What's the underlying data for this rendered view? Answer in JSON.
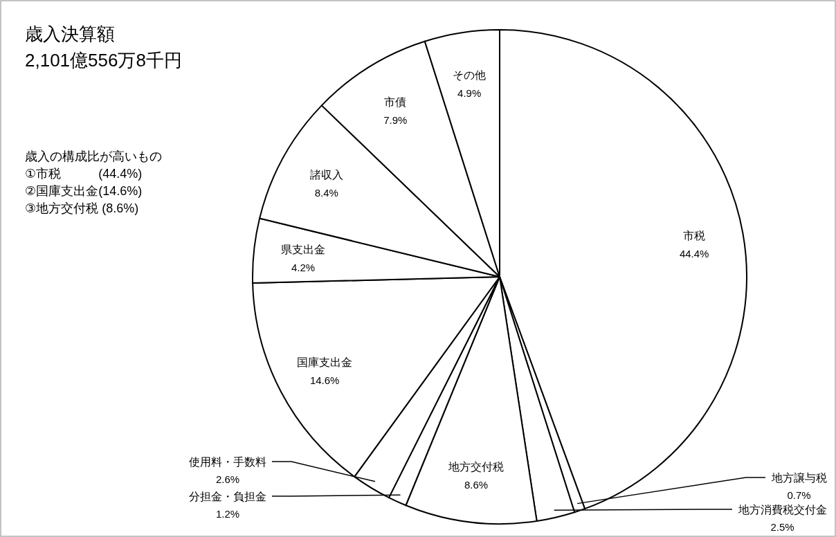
{
  "chart_data": {
    "type": "pie",
    "title": "歳入決算額",
    "subtitle": "2,101億556万8千円",
    "categories": [
      "市税",
      "地方譲与税",
      "地方消費税交付金",
      "地方交付税",
      "分担金・負担金",
      "使用料・手数料",
      "国庫支出金",
      "県支出金",
      "諸収入",
      "市債",
      "その他"
    ],
    "values": [
      44.4,
      0.7,
      2.5,
      8.6,
      1.2,
      2.6,
      14.6,
      4.2,
      8.4,
      7.9,
      4.9
    ],
    "value_labels": [
      "44.4%",
      "0.7%",
      "2.5%",
      "8.6%",
      "1.2%",
      "2.6%",
      "14.6%",
      "4.2%",
      "8.4%",
      "7.9%",
      "4.9%"
    ],
    "colors": [
      "#ffffff",
      "#ffffff",
      "#ffffff",
      "#ffffff",
      "#ffffff",
      "#ffffff",
      "#ffffff",
      "#ffffff",
      "#ffffff",
      "#ffffff",
      "#ffffff"
    ],
    "annotations": [
      "歳入の構成比が高いもの",
      "①市税　　　(44.4%)",
      "②国庫支出金(14.6%)",
      "③地方交付税 (8.6%)"
    ]
  }
}
